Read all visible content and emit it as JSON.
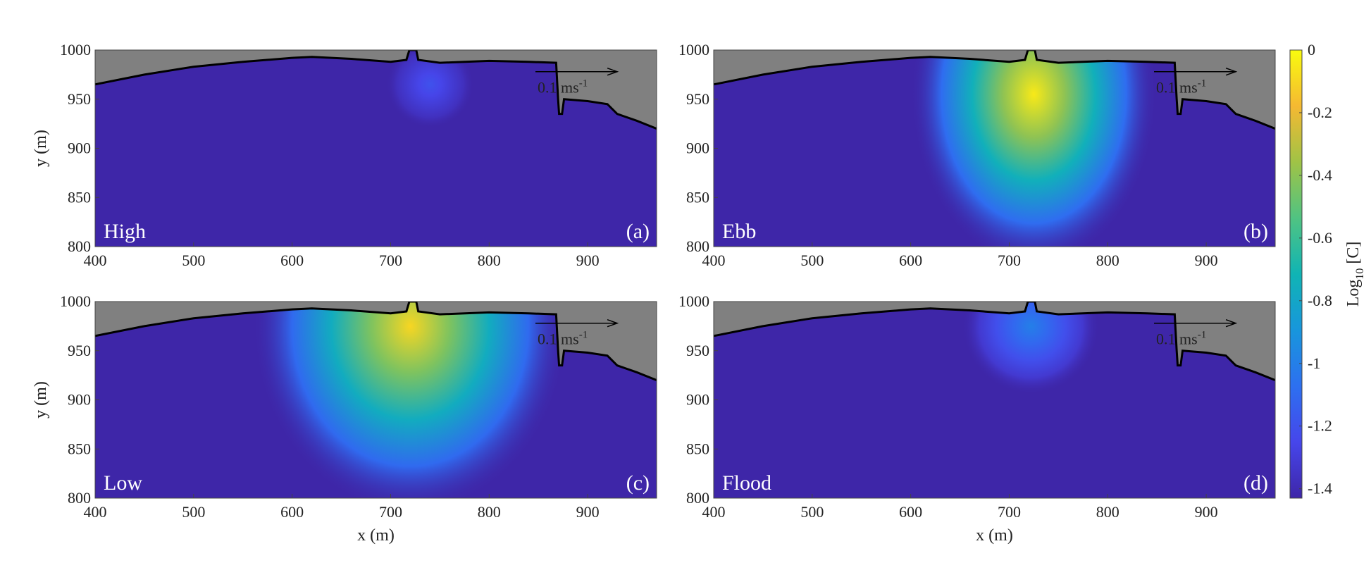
{
  "chart_data": [
    {
      "type": "heatmap",
      "label": "High",
      "tag": "(a)",
      "xlim": [
        400,
        970
      ],
      "ylim": [
        800,
        1000
      ],
      "xticks": [
        400,
        500,
        600,
        700,
        800,
        900
      ],
      "yticks": [
        800,
        850,
        900,
        950,
        1000
      ],
      "ylabel": "y (m)",
      "scale_label": "0.1 ms",
      "scale_sup": "-1",
      "plume": {
        "x": 740,
        "y": 965,
        "rx": 45,
        "ry": 45,
        "peak": -1.2
      }
    },
    {
      "type": "heatmap",
      "label": "Ebb",
      "tag": "(b)",
      "xlim": [
        400,
        970
      ],
      "ylim": [
        800,
        1000
      ],
      "xticks": [
        400,
        500,
        600,
        700,
        800,
        900
      ],
      "yticks": [
        800,
        850,
        900,
        950,
        1000
      ],
      "scale_label": "0.1 ms",
      "scale_sup": "-1",
      "plume": {
        "x": 725,
        "y": 955,
        "rx": 125,
        "ry": 175,
        "peak": -0.05
      }
    },
    {
      "type": "heatmap",
      "label": "Low",
      "tag": "(c)",
      "xlim": [
        400,
        970
      ],
      "ylim": [
        800,
        1000
      ],
      "xticks": [
        400,
        500,
        600,
        700,
        800,
        900
      ],
      "yticks": [
        800,
        850,
        900,
        950,
        1000
      ],
      "xlabel": "x (m)",
      "ylabel": "y (m)",
      "scale_label": "0.1 ms",
      "scale_sup": "-1",
      "plume": {
        "x": 720,
        "y": 975,
        "rx": 160,
        "ry": 190,
        "peak": -0.1
      }
    },
    {
      "type": "heatmap",
      "label": "Flood",
      "tag": "(d)",
      "xlim": [
        400,
        970
      ],
      "ylim": [
        800,
        1000
      ],
      "xticks": [
        400,
        500,
        600,
        700,
        800,
        900
      ],
      "yticks": [
        800,
        850,
        900,
        950,
        1000
      ],
      "xlabel": "x (m)",
      "scale_label": "0.1 ms",
      "scale_sup": "-1",
      "plume": {
        "x": 722,
        "y": 975,
        "rx": 70,
        "ry": 70,
        "peak": -1.0
      }
    }
  ],
  "colorbar": {
    "clim": [
      -1.43,
      0
    ],
    "ticks": [
      0,
      -0.2,
      -0.4,
      -0.6,
      -0.8,
      -1,
      -1.2,
      -1.4
    ],
    "label": "Log",
    "label_sub": "10",
    "label_suffix": " [C]"
  },
  "coastline": [
    [
      400,
      965
    ],
    [
      450,
      975
    ],
    [
      500,
      983
    ],
    [
      550,
      988
    ],
    [
      600,
      992
    ],
    [
      620,
      993
    ],
    [
      660,
      991
    ],
    [
      700,
      988
    ],
    [
      716,
      990
    ],
    [
      719,
      1000
    ],
    [
      726,
      1000
    ],
    [
      728,
      990
    ],
    [
      750,
      987
    ],
    [
      800,
      989
    ],
    [
      840,
      988
    ],
    [
      868,
      987
    ],
    [
      870,
      950
    ],
    [
      871,
      935
    ],
    [
      874,
      935
    ],
    [
      876,
      950
    ],
    [
      900,
      948
    ],
    [
      920,
      945
    ],
    [
      930,
      935
    ],
    [
      950,
      928
    ],
    [
      970,
      920
    ]
  ]
}
